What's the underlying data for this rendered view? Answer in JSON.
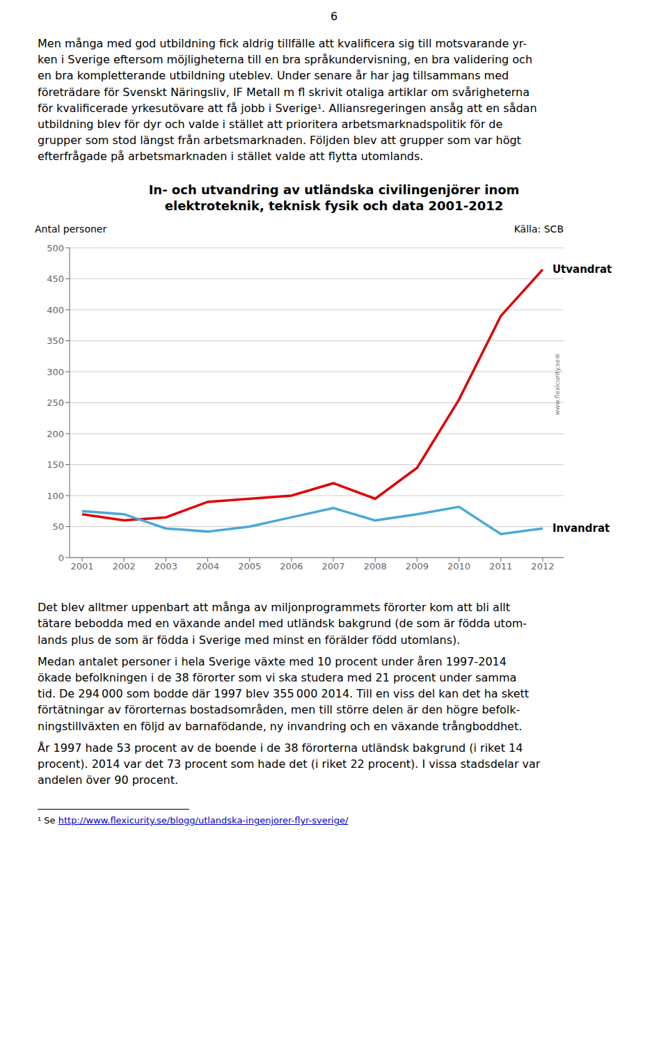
{
  "page": {
    "page_number": "6",
    "text_before": [
      "Men många med god utbildning fick aldrig tillfälle att kvalificera sig till motsvarande yr-",
      "ken i Sverige eftersom möjligheterna till en bra språkundervisning, en bra validering och",
      "en bra kompletterande utbildning uteblev. Under senare år har jag tillsammans med",
      "företrädare för Svenskt Näringsliv, IF Metall m fl skrivit otaliga artiklar om svårigheterna",
      "för kvalificerade yrkesutövare att få jobb i Sverige¹. Alliansregeringen ansåg att en sådan",
      "utbildning blev för dyr och valde i stället att prioritera arbetsmarknadspolitik för de",
      "grupper som stod längst från arbetsmarknaden. Följden blev att grupper som var högt",
      "efterfrågade på arbetsmarknaden i stället valde att flytta utomlands."
    ],
    "text_after": [
      [
        "Det blev alltmer uppenbart att många av miljonprogrammets förorter kom att bli allt",
        "tätare bebodda med en växande andel med utländsk bakgrund (de som är födda utom-",
        "lands plus de som är födda i Sverige med minst en förälder född utomlans)."
      ],
      [
        "Medan antalet personer i hela Sverige växte med 10 procent under åren 1997-2014",
        "ökade befolkningen i de 38 förorter som vi ska studera med 21 procent under samma",
        "tid. De 294 000 som bodde där 1997 blev 355 000 2014. Till en viss del kan det ha skett",
        "förtätningar av förorternas bostadsområden, men till större delen är den högre befolk-",
        "ningstillväxten en följd av barnafödande, ny invandring och en växande trångboddhet."
      ],
      [
        "År 1997 hade 53 procent av de boende i de 38 förorterna utländsk bakgrund (i riket 14",
        "procent). 2014 var det 73 procent som hade det (i riket 22 procent). I vissa stadsdelar var",
        "andelen över 90 procent."
      ]
    ],
    "footnote": "¹ Se",
    "footnote_url": "http://www.flexicurity.se/blogg/utlandska-ingenjorer-flyr-sverige/"
  },
  "chart_data": {
    "type": "line",
    "title": "In- och utvandring av utländska civilingenjörer inom\nelektroteknik, teknisk fysik och data 2001-2012",
    "ylabel": "Antal personer",
    "annotations": [
      "Källa: SCB",
      "www.flexicurity.se®"
    ],
    "x": [
      2001,
      2002,
      2003,
      2004,
      2005,
      2006,
      2007,
      2008,
      2009,
      2010,
      2011,
      2012
    ],
    "series": [
      {
        "name": "Utvandrat",
        "color": "#e00000",
        "values": [
          70,
          60,
          65,
          90,
          95,
          100,
          120,
          95,
          145,
          255,
          390,
          465
        ]
      },
      {
        "name": "Invandrat",
        "color": "#4aa8d8",
        "values": [
          75,
          70,
          47,
          42,
          50,
          65,
          80,
          60,
          70,
          82,
          38,
          47
        ]
      }
    ],
    "xlim": [
      2000.7,
      2012.5
    ],
    "xticks": [
      2001,
      2002,
      2003,
      2004,
      2005,
      2006,
      2007,
      2008,
      2009,
      2010,
      2011,
      2012
    ],
    "ylim": [
      0,
      500
    ],
    "yticks": [
      0,
      50,
      100,
      150,
      200,
      250,
      300,
      350,
      400,
      450,
      500
    ],
    "grid": true
  }
}
